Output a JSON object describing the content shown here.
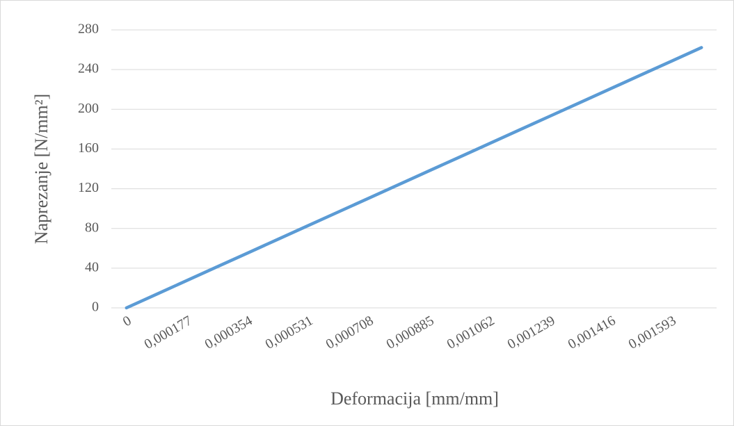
{
  "chart_data": {
    "type": "line",
    "x_label": "Deformacija [mm/mm]",
    "y_label": "Naprezanje [N/mm²]",
    "categories": [
      "0",
      null,
      "0,000177",
      null,
      "0,000354",
      null,
      "0,000531",
      null,
      "0,000708",
      null,
      "0,000885",
      null,
      "0,001062",
      null,
      "0,001239",
      null,
      "0,001416",
      null,
      "0,001593",
      null
    ],
    "values": [
      0,
      13.8,
      27.6,
      41.4,
      55.2,
      69,
      82.8,
      96.6,
      110.4,
      124.2,
      138,
      151.8,
      165.6,
      179.4,
      193.2,
      207,
      220.8,
      234.6,
      248.4,
      262.2
    ],
    "color": "#5b9bd5",
    "ylim": [
      0,
      280
    ],
    "yticks": [
      0,
      40,
      80,
      120,
      160,
      200,
      240,
      280
    ],
    "grid": true
  }
}
